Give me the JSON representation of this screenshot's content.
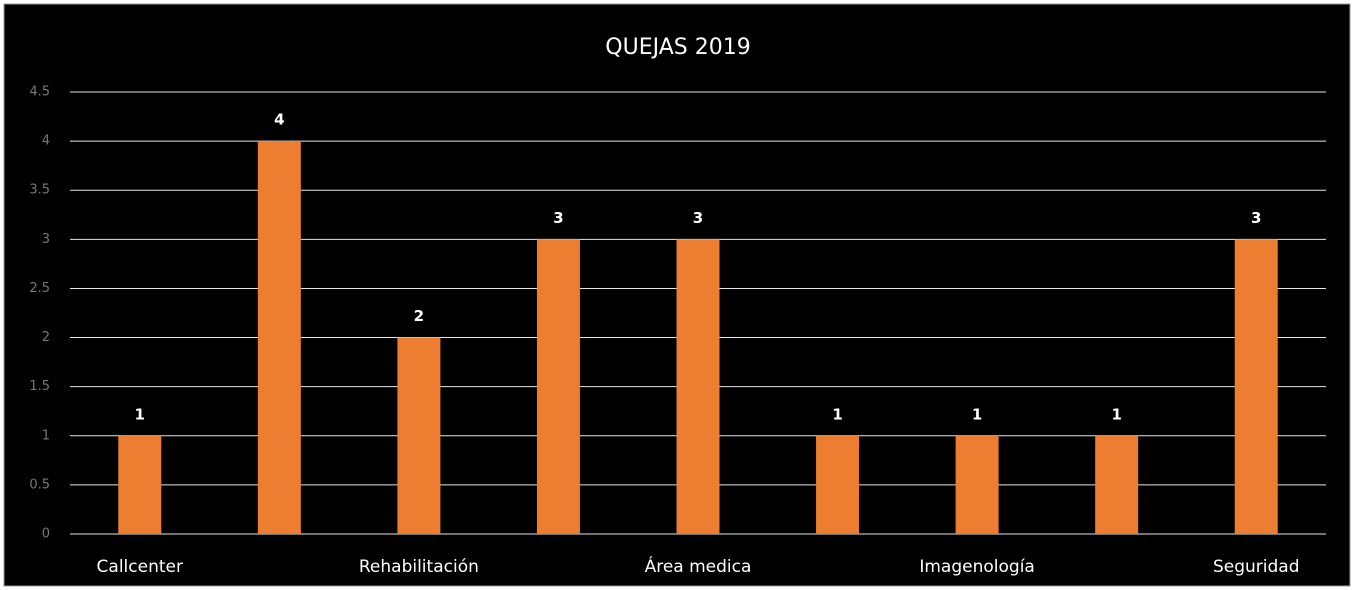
{
  "chart_data": {
    "type": "bar",
    "title": "QUEJAS 2019",
    "categories": [
      "Callcenter",
      null,
      "Rehabilitación",
      null,
      "Área medica",
      null,
      "Imagenología",
      null,
      "Seguridad"
    ],
    "values": [
      1,
      4,
      2,
      3,
      3,
      1,
      1,
      1,
      3
    ],
    "color": "#ed7d31",
    "ylim": [
      0,
      4.5
    ],
    "yticks": [
      0,
      0.5,
      1,
      1.5,
      2,
      2.5,
      3,
      3.5,
      4,
      4.5
    ],
    "grid": true
  }
}
